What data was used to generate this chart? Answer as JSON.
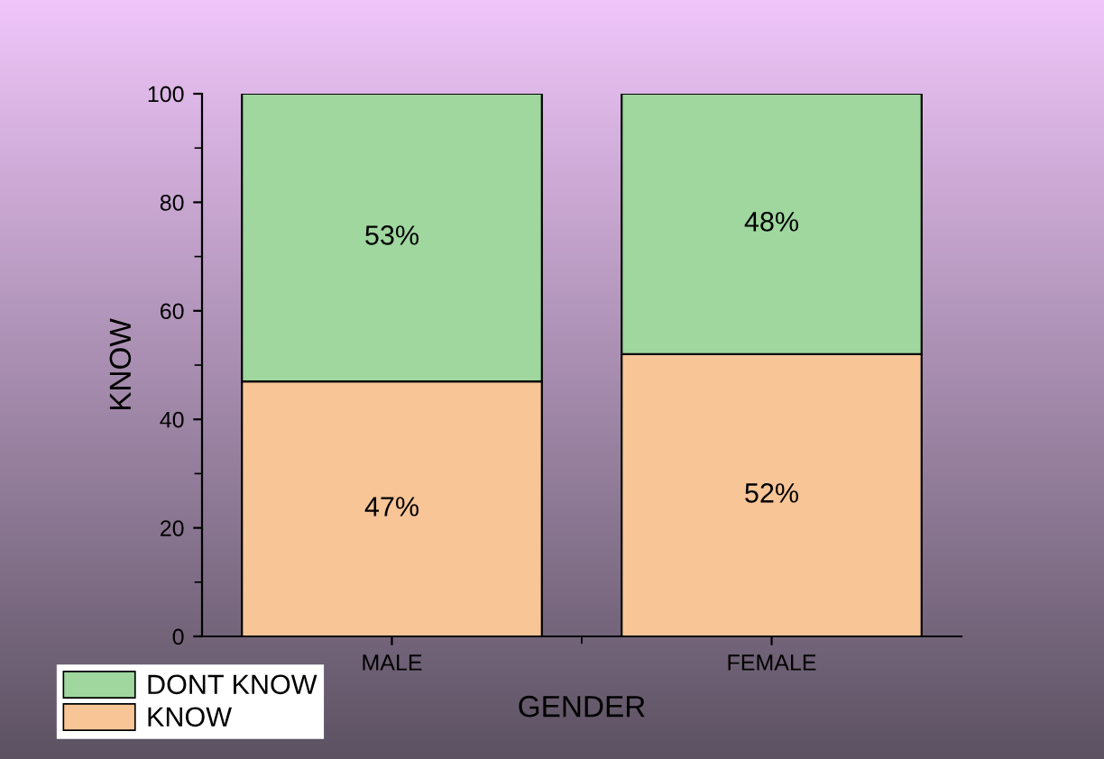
{
  "chart_data": {
    "type": "bar",
    "stacked": true,
    "xlabel": "GENDER",
    "ylabel": "KNOW",
    "categories": [
      "MALE",
      "FEMALE"
    ],
    "series": [
      {
        "name": "KNOW",
        "color": "#f8c597",
        "values": [
          47,
          52
        ],
        "value_labels": [
          "47%",
          "52%"
        ]
      },
      {
        "name": "DONT KNOW",
        "color": "#9fd79f",
        "values": [
          53,
          48
        ],
        "value_labels": [
          "53%",
          "48%"
        ]
      }
    ],
    "ylim": [
      0,
      100
    ],
    "yticks": [
      0,
      20,
      40,
      60,
      80,
      100
    ],
    "grid": false,
    "legend": "bottom left"
  }
}
